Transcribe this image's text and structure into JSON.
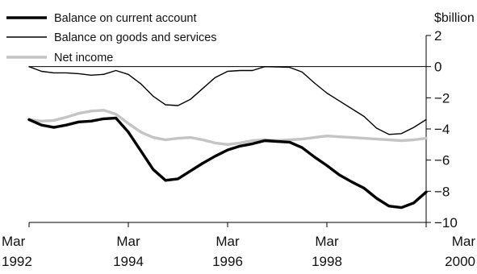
{
  "chart_data": {
    "type": "line",
    "title": "",
    "xlabel": "",
    "ylabel": "$billion",
    "x_range": [
      "1992-03",
      "2000-03"
    ],
    "x_ticks": [
      {
        "month": "Mar",
        "year": "1992",
        "date": "1992-03"
      },
      {
        "month": "Mar",
        "year": "1994",
        "date": "1994-03"
      },
      {
        "month": "Mar",
        "year": "1996",
        "date": "1996-03"
      },
      {
        "month": "Mar",
        "year": "1998",
        "date": "1998-03"
      },
      {
        "month": "Mar",
        "year": "2000",
        "date": "2000-03"
      }
    ],
    "ylim": [
      -10,
      2
    ],
    "y_ticks": [
      {
        "value": 2,
        "label": "2"
      },
      {
        "value": 0,
        "label": "0"
      },
      {
        "value": -2,
        "label": "−2"
      },
      {
        "value": -4,
        "label": "−4"
      },
      {
        "value": -6,
        "label": "−6"
      },
      {
        "value": -8,
        "label": "−8"
      },
      {
        "value": -10,
        "label": "−10"
      }
    ],
    "zero_line": true,
    "grid": false,
    "legend_position": "top-left",
    "series": [
      {
        "name": "Balance on current account",
        "color": "#000000",
        "style": "thick",
        "points": [
          [
            "1992-03",
            -3.4
          ],
          [
            "1992-06",
            -3.75
          ],
          [
            "1992-09",
            -3.9
          ],
          [
            "1992-12",
            -3.75
          ],
          [
            "1993-03",
            -3.55
          ],
          [
            "1993-06",
            -3.5
          ],
          [
            "1993-09",
            -3.35
          ],
          [
            "1993-12",
            -3.3
          ],
          [
            "1994-03",
            -4.2
          ],
          [
            "1994-06",
            -5.4
          ],
          [
            "1994-09",
            -6.6
          ],
          [
            "1994-12",
            -7.3
          ],
          [
            "1995-03",
            -7.2
          ],
          [
            "1995-06",
            -6.7
          ],
          [
            "1995-09",
            -6.2
          ],
          [
            "1995-12",
            -5.75
          ],
          [
            "1996-03",
            -5.35
          ],
          [
            "1996-06",
            -5.1
          ],
          [
            "1996-09",
            -4.95
          ],
          [
            "1996-12",
            -4.75
          ],
          [
            "1997-03",
            -4.8
          ],
          [
            "1997-06",
            -4.85
          ],
          [
            "1997-09",
            -5.2
          ],
          [
            "1997-12",
            -5.8
          ],
          [
            "1998-03",
            -6.35
          ],
          [
            "1998-06",
            -6.95
          ],
          [
            "1998-09",
            -7.4
          ],
          [
            "1998-12",
            -7.8
          ],
          [
            "1999-03",
            -8.45
          ],
          [
            "1999-06",
            -8.95
          ],
          [
            "1999-09",
            -9.05
          ],
          [
            "1999-12",
            -8.75
          ],
          [
            "2000-03",
            -8.05
          ]
        ]
      },
      {
        "name": "Balance on goods and services",
        "color": "#000000",
        "style": "thin",
        "points": [
          [
            "1992-03",
            0.0
          ],
          [
            "1992-06",
            -0.3
          ],
          [
            "1992-09",
            -0.4
          ],
          [
            "1992-12",
            -0.4
          ],
          [
            "1993-03",
            -0.45
          ],
          [
            "1993-06",
            -0.55
          ],
          [
            "1993-09",
            -0.5
          ],
          [
            "1993-12",
            -0.25
          ],
          [
            "1994-03",
            -0.5
          ],
          [
            "1994-06",
            -1.1
          ],
          [
            "1994-09",
            -1.9
          ],
          [
            "1994-12",
            -2.45
          ],
          [
            "1995-03",
            -2.5
          ],
          [
            "1995-06",
            -2.1
          ],
          [
            "1995-09",
            -1.4
          ],
          [
            "1995-12",
            -0.7
          ],
          [
            "1996-03",
            -0.3
          ],
          [
            "1996-06",
            -0.25
          ],
          [
            "1996-09",
            -0.25
          ],
          [
            "1996-12",
            0.0
          ],
          [
            "1997-03",
            -0.02
          ],
          [
            "1997-06",
            -0.05
          ],
          [
            "1997-09",
            -0.35
          ],
          [
            "1997-12",
            -1.05
          ],
          [
            "1998-03",
            -1.7
          ],
          [
            "1998-06",
            -2.2
          ],
          [
            "1998-09",
            -2.7
          ],
          [
            "1998-12",
            -3.2
          ],
          [
            "1999-03",
            -3.95
          ],
          [
            "1999-06",
            -4.35
          ],
          [
            "1999-09",
            -4.3
          ],
          [
            "1999-12",
            -3.9
          ],
          [
            "2000-03",
            -3.4
          ]
        ]
      },
      {
        "name": "Net income",
        "color": "#c4c4c4",
        "style": "thick",
        "points": [
          [
            "1992-03",
            -3.4
          ],
          [
            "1992-06",
            -3.5
          ],
          [
            "1992-09",
            -3.45
          ],
          [
            "1992-12",
            -3.25
          ],
          [
            "1993-03",
            -3.0
          ],
          [
            "1993-06",
            -2.85
          ],
          [
            "1993-09",
            -2.8
          ],
          [
            "1993-12",
            -3.05
          ],
          [
            "1994-03",
            -3.65
          ],
          [
            "1994-06",
            -4.2
          ],
          [
            "1994-09",
            -4.55
          ],
          [
            "1994-12",
            -4.7
          ],
          [
            "1995-03",
            -4.6
          ],
          [
            "1995-06",
            -4.55
          ],
          [
            "1995-09",
            -4.7
          ],
          [
            "1995-12",
            -4.9
          ],
          [
            "1996-03",
            -5.0
          ],
          [
            "1996-06",
            -4.9
          ],
          [
            "1996-09",
            -4.75
          ],
          [
            "1996-12",
            -4.7
          ],
          [
            "1997-03",
            -4.75
          ],
          [
            "1997-06",
            -4.7
          ],
          [
            "1997-09",
            -4.65
          ],
          [
            "1997-12",
            -4.55
          ],
          [
            "1998-03",
            -4.45
          ],
          [
            "1998-06",
            -4.5
          ],
          [
            "1998-09",
            -4.55
          ],
          [
            "1998-12",
            -4.6
          ],
          [
            "1999-03",
            -4.65
          ],
          [
            "1999-06",
            -4.7
          ],
          [
            "1999-09",
            -4.75
          ],
          [
            "1999-12",
            -4.7
          ],
          [
            "2000-03",
            -4.6
          ]
        ]
      }
    ]
  }
}
